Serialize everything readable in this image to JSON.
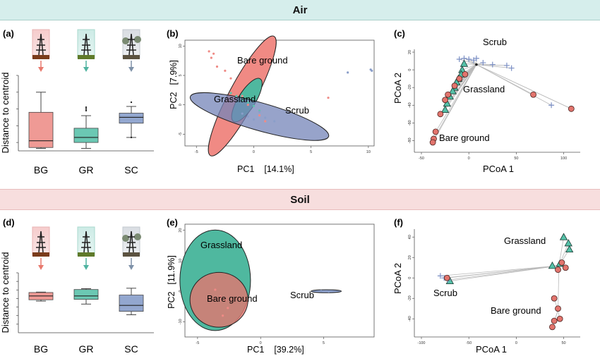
{
  "sections": {
    "air": "Air",
    "soil": "Soil"
  },
  "panels": {
    "a": {
      "letter": "(a)",
      "ylabel": "Distance to centroid",
      "categories": [
        "BG",
        "GR",
        "SC"
      ]
    },
    "b": {
      "letter": "(b)",
      "xlabel": "PC1",
      "xpct": "[14.1%]",
      "ylabel": "PC2",
      "ypct": "[7.9%]",
      "groups": [
        "Bare ground",
        "Grassland",
        "Scrub"
      ]
    },
    "c": {
      "letter": "(c)",
      "xlabel": "PCoA 1",
      "ylabel": "PCoA 2",
      "groups": [
        "Scrub",
        "Grassland",
        "Bare ground"
      ]
    },
    "d": {
      "letter": "(d)",
      "ylabel": "Distance to centroid",
      "categories": [
        "BG",
        "GR",
        "SC"
      ]
    },
    "e": {
      "letter": "(e)",
      "xlabel": "PC1",
      "xpct": "[39.2%]",
      "ylabel": "PC2",
      "ypct": "[11.9%]",
      "groups": [
        "Grassland",
        "Bare ground",
        "Scrub"
      ]
    },
    "f": {
      "letter": "(f)",
      "xlabel": "PCoA 1",
      "ylabel": "PCoA 2",
      "groups": [
        "Grassland",
        "Scrub",
        "Bare ground"
      ]
    }
  },
  "colors": {
    "bare_ground": "#ef8b86",
    "grassland": "#5ec4ad",
    "scrub": "#8a9ec9",
    "line": "#b9b9b9"
  },
  "chart_data": [
    {
      "id": "a",
      "type": "box",
      "categories": [
        "BG",
        "GR",
        "SC"
      ],
      "ylim": [
        0.1,
        1.0
      ],
      "boxes": [
        {
          "min": 0.13,
          "q1": 0.14,
          "median": 0.22,
          "q3": 0.56,
          "max": 0.8,
          "outliers": []
        },
        {
          "min": 0.13,
          "q1": 0.2,
          "median": 0.26,
          "q3": 0.37,
          "max": 0.52,
          "outliers": [
            0.58,
            0.6,
            0.62
          ]
        },
        {
          "min": 0.26,
          "q1": 0.43,
          "median": 0.5,
          "q3": 0.55,
          "max": 0.63,
          "outliers": [
            0.68,
            0.26
          ]
        }
      ]
    },
    {
      "id": "b",
      "type": "scatter",
      "xlim": [
        -6,
        10.5
      ],
      "ylim": [
        -7,
        11
      ],
      "xticks": [
        -5,
        0,
        5,
        10
      ],
      "yticks": [
        -5,
        0,
        5,
        10
      ],
      "ellipses": [
        {
          "group": "Bare ground",
          "cx": -1.0,
          "cy": 1.5,
          "rx": 7.8,
          "ry": 1.55,
          "angle": -62
        },
        {
          "group": "Grassland",
          "cx": -0.6,
          "cy": 0.8,
          "rx": 2.9,
          "ry": 1.0,
          "angle": -58
        },
        {
          "group": "Scrub",
          "cx": 0.5,
          "cy": -2.0,
          "rx": 8.3,
          "ry": 1.6,
          "angle": 16
        }
      ],
      "points": [
        {
          "group": "Bare ground",
          "x": -3.9,
          "y": 9.1
        },
        {
          "group": "Bare ground",
          "x": -3.5,
          "y": 8.7
        },
        {
          "group": "Bare ground",
          "x": -3.7,
          "y": 8.0
        },
        {
          "group": "Bare ground",
          "x": -3.2,
          "y": 6.5
        },
        {
          "group": "Bare ground",
          "x": -2.5,
          "y": 5.8
        },
        {
          "group": "Bare ground",
          "x": -2.0,
          "y": 4.5
        },
        {
          "group": "Bare ground",
          "x": -1.5,
          "y": 2.5
        },
        {
          "group": "Bare ground",
          "x": -1.0,
          "y": 1.5
        },
        {
          "group": "Bare ground",
          "x": -0.5,
          "y": 0.0
        },
        {
          "group": "Bare ground",
          "x": 0.5,
          "y": -1.8
        },
        {
          "group": "Bare ground",
          "x": 1.0,
          "y": -2.8
        },
        {
          "group": "Bare ground",
          "x": 6.5,
          "y": 1.2
        },
        {
          "group": "Grassland",
          "x": -2.0,
          "y": 2.0
        },
        {
          "group": "Grassland",
          "x": -1.5,
          "y": 1.5
        },
        {
          "group": "Grassland",
          "x": -1.0,
          "y": 0.8
        },
        {
          "group": "Grassland",
          "x": -0.5,
          "y": 0.4
        },
        {
          "group": "Grassland",
          "x": 0.0,
          "y": -0.2
        },
        {
          "group": "Grassland",
          "x": 0.5,
          "y": -1.0
        },
        {
          "group": "Scrub",
          "x": -1.0,
          "y": -1.5
        },
        {
          "group": "Scrub",
          "x": -0.5,
          "y": -2.0
        },
        {
          "group": "Scrub",
          "x": 0.0,
          "y": -2.5
        },
        {
          "group": "Scrub",
          "x": 0.5,
          "y": -1.2
        },
        {
          "group": "Scrub",
          "x": 1.0,
          "y": -2.2
        },
        {
          "group": "Scrub",
          "x": 1.8,
          "y": -2.8
        },
        {
          "group": "Scrub",
          "x": 8.2,
          "y": 5.5
        },
        {
          "group": "Scrub",
          "x": 10.2,
          "y": 6.0
        },
        {
          "group": "Scrub",
          "x": 10.3,
          "y": 5.8
        }
      ]
    },
    {
      "id": "c",
      "type": "scatter",
      "xlim": [
        -50,
        110
      ],
      "ylim": [
        -90,
        20
      ],
      "xticks": [
        -50,
        0,
        50,
        100
      ],
      "yticks": [
        20,
        0,
        -20,
        -40,
        -60,
        -80
      ],
      "points": [
        {
          "group": "Scrub",
          "x": -10,
          "y": 12
        },
        {
          "group": "Scrub",
          "x": -5,
          "y": 13
        },
        {
          "group": "Scrub",
          "x": 0,
          "y": 12
        },
        {
          "group": "Scrub",
          "x": 5,
          "y": 11
        },
        {
          "group": "Scrub",
          "x": 8,
          "y": 13
        },
        {
          "group": "Scrub",
          "x": 15,
          "y": 8
        },
        {
          "group": "Scrub",
          "x": 25,
          "y": 6
        },
        {
          "group": "Scrub",
          "x": 40,
          "y": 5
        },
        {
          "group": "Scrub",
          "x": 45,
          "y": 2
        },
        {
          "group": "Scrub",
          "x": 87,
          "y": -40
        },
        {
          "group": "Scrub",
          "x": 108,
          "y": -44
        },
        {
          "group": "Grassland",
          "x": -5,
          "y": 7
        },
        {
          "group": "Grassland",
          "x": -7,
          "y": 0
        },
        {
          "group": "Grassland",
          "x": -8,
          "y": -5
        },
        {
          "group": "Grassland",
          "x": -11,
          "y": -10
        },
        {
          "group": "Grassland",
          "x": -13,
          "y": -14
        },
        {
          "group": "Grassland",
          "x": -15,
          "y": -20
        },
        {
          "group": "Grassland",
          "x": -17,
          "y": -24
        },
        {
          "group": "Grassland",
          "x": -20,
          "y": -30
        },
        {
          "group": "Grassland",
          "x": -23,
          "y": -38
        },
        {
          "group": "Grassland",
          "x": -25,
          "y": -45
        },
        {
          "group": "Bare ground",
          "x": -4,
          "y": -5
        },
        {
          "group": "Bare ground",
          "x": -10,
          "y": -10
        },
        {
          "group": "Bare ground",
          "x": -15,
          "y": -18
        },
        {
          "group": "Bare ground",
          "x": -22,
          "y": -28
        },
        {
          "group": "Bare ground",
          "x": -25,
          "y": -34
        },
        {
          "group": "Bare ground",
          "x": -30,
          "y": -50
        },
        {
          "group": "Bare ground",
          "x": -35,
          "y": -70
        },
        {
          "group": "Bare ground",
          "x": -37,
          "y": -78
        },
        {
          "group": "Bare ground",
          "x": -38,
          "y": -82
        },
        {
          "group": "Bare ground",
          "x": 68,
          "y": -28
        },
        {
          "group": "Bare ground",
          "x": 108,
          "y": -44
        }
      ]
    },
    {
      "id": "d",
      "type": "box",
      "categories": [
        "BG",
        "GR",
        "SC"
      ],
      "ylim": [
        0.0,
        1.4
      ],
      "boxes": [
        {
          "min": 0.74,
          "q1": 0.77,
          "median": 0.86,
          "q3": 0.94,
          "max": 0.95,
          "outliers": []
        },
        {
          "min": 0.67,
          "q1": 0.78,
          "median": 0.86,
          "q3": 1.01,
          "max": 1.03,
          "outliers": []
        },
        {
          "min": 0.42,
          "q1": 0.5,
          "median": 0.64,
          "q3": 0.88,
          "max": 1.04,
          "outliers": []
        }
      ]
    },
    {
      "id": "e",
      "type": "scatter",
      "xlim": [
        -6,
        9
      ],
      "ylim": [
        -15,
        22
      ],
      "xticks": [
        -5,
        0,
        5
      ],
      "yticks": [
        20,
        10,
        0,
        -10
      ],
      "ellipses": [
        {
          "group": "Grassland",
          "cx": -3.6,
          "cy": 3.6,
          "rx": 2.8,
          "ry": 16.5,
          "angle": 0
        },
        {
          "group": "Bare ground",
          "cx": -3.3,
          "cy": -2.8,
          "rx": 2.3,
          "ry": 9.0,
          "angle": 0
        },
        {
          "group": "Scrub",
          "cx": 5.2,
          "cy": 0.0,
          "rx": 1.2,
          "ry": 0.5,
          "angle": 0
        }
      ],
      "points": [
        {
          "group": "Bare ground",
          "x": -3.6,
          "y": 0.5
        },
        {
          "group": "Bare ground",
          "x": -3.2,
          "y": -1.8
        },
        {
          "group": "Bare ground",
          "x": -2.8,
          "y": -3.0
        },
        {
          "group": "Bare ground",
          "x": -2.6,
          "y": -5.5
        },
        {
          "group": "Bare ground",
          "x": -3.0,
          "y": -8.0
        },
        {
          "group": "Scrub",
          "x": 4.8,
          "y": 0.1
        },
        {
          "group": "Scrub",
          "x": 5.4,
          "y": -0.1
        }
      ]
    },
    {
      "id": "f",
      "type": "scatter",
      "xlim": [
        -100,
        60
      ],
      "ylim": [
        -55,
        45
      ],
      "xticks": [
        -100,
        -50,
        0,
        50
      ],
      "yticks": [
        40,
        20,
        0,
        -20,
        -40
      ],
      "points": [
        {
          "group": "Grassland",
          "x": 50,
          "y": 40
        },
        {
          "group": "Grassland",
          "x": 55,
          "y": 34
        },
        {
          "group": "Grassland",
          "x": 56,
          "y": 28
        },
        {
          "group": "Grassland",
          "x": 46,
          "y": 14
        },
        {
          "group": "Grassland",
          "x": 38,
          "y": 12
        },
        {
          "group": "Grassland",
          "x": -70,
          "y": -3
        },
        {
          "group": "Scrub",
          "x": -80,
          "y": 2
        },
        {
          "group": "Scrub",
          "x": -76,
          "y": 0
        },
        {
          "group": "Scrub",
          "x": -72,
          "y": -2
        },
        {
          "group": "Bare ground",
          "x": -73,
          "y": 0
        },
        {
          "group": "Bare ground",
          "x": 48,
          "y": 15
        },
        {
          "group": "Bare ground",
          "x": 52,
          "y": 10
        },
        {
          "group": "Bare ground",
          "x": 44,
          "y": 8
        },
        {
          "group": "Bare ground",
          "x": 40,
          "y": -20
        },
        {
          "group": "Bare ground",
          "x": 44,
          "y": -30
        },
        {
          "group": "Bare ground",
          "x": 46,
          "y": -40
        },
        {
          "group": "Bare ground",
          "x": 40,
          "y": -42
        },
        {
          "group": "Bare ground",
          "x": 38,
          "y": -48
        }
      ]
    }
  ]
}
